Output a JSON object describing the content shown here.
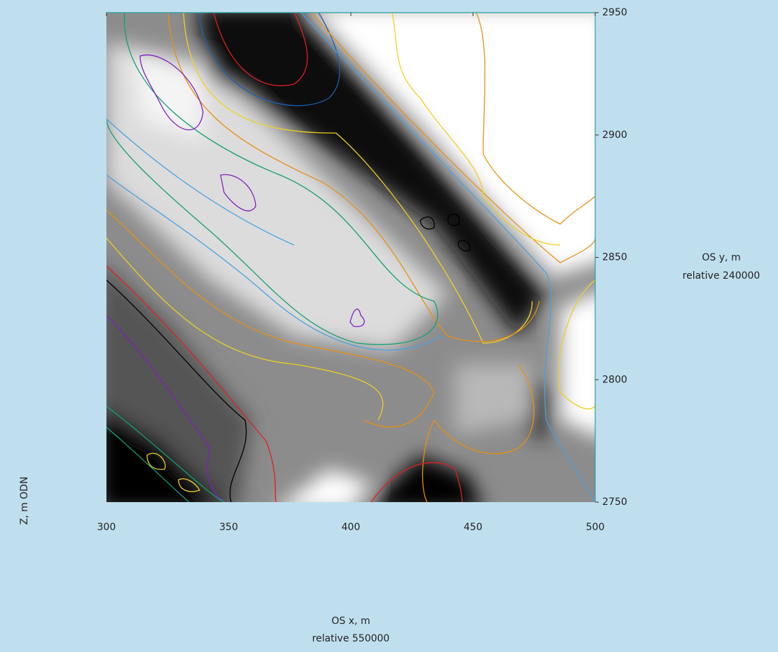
{
  "chart_data": {
    "type": "heatmap",
    "xlabel": "OS x, m",
    "xlabel_note": "relative 550000",
    "ylabel": "OS y, m",
    "ylabel_note": "relative 240000",
    "colorbar_label": "Z, m ODN",
    "xlim": [
      300,
      500
    ],
    "xticks": [
      300,
      350,
      400,
      450,
      500
    ],
    "ylim": [
      2750,
      2950
    ],
    "yticks": [
      2750,
      2800,
      2850,
      2900,
      2950
    ]
  }
}
